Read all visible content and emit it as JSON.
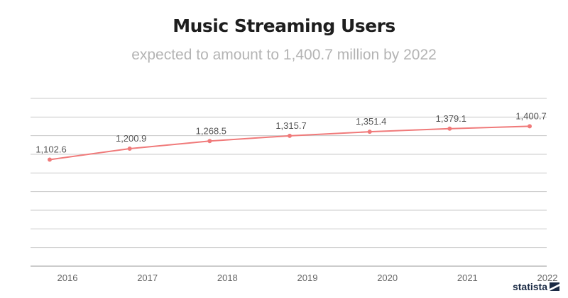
{
  "chart_data": {
    "type": "line",
    "title": "Music Streaming Users",
    "subtitle": "expected to amount to 1,400.7 million by 2022",
    "categories": [
      "2016",
      "2017",
      "2018",
      "2019",
      "2020",
      "2021",
      "2022"
    ],
    "values": [
      1102.6,
      1200.9,
      1268.5,
      1315.7,
      1351.4,
      1379.1,
      1400.7
    ],
    "data_labels": [
      "1,102.6",
      "1,200.9",
      "1,268.5",
      "1,315.7",
      "1,351.4",
      "1,379.1",
      "1,400.7"
    ],
    "xlabel": "",
    "ylabel": "",
    "ylim": [
      150,
      1650
    ],
    "grid": true,
    "y_tick_labels_shown": false,
    "line_color": "#f07a7a",
    "grid_color": "#c8c8c8"
  },
  "brand": {
    "logo_text": "statista"
  }
}
